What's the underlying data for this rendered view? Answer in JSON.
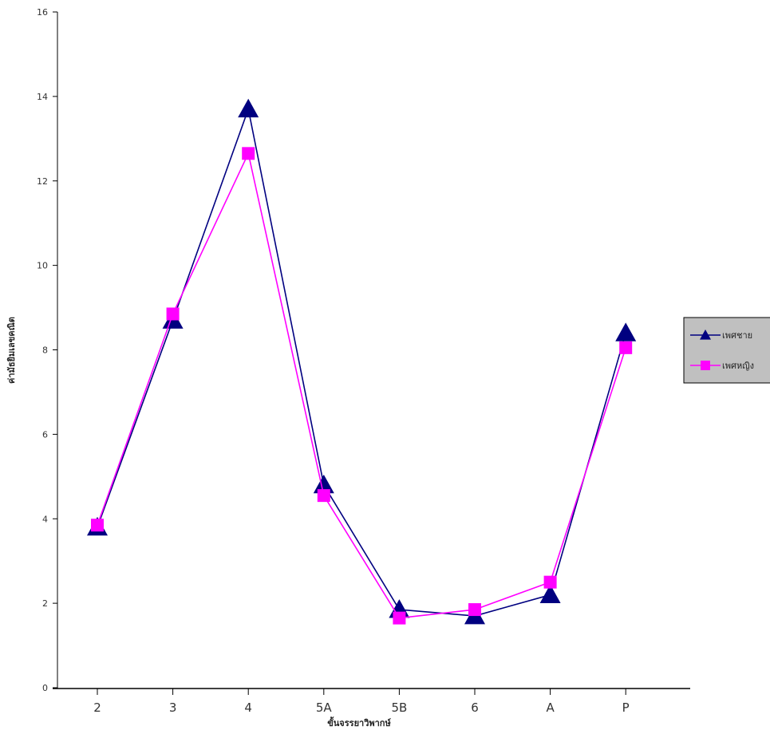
{
  "chart_data": {
    "type": "line",
    "title": "",
    "xlabel": "ขั้นจรรยาวิพากษ์",
    "ylabel": "ค่ามัธยิมเลขคณิต",
    "categories": [
      "2",
      "3",
      "4",
      "5A",
      "5B",
      "6",
      "A",
      "P"
    ],
    "ylim": [
      0,
      16
    ],
    "yticks": [
      0,
      2,
      4,
      6,
      8,
      10,
      12,
      14,
      16
    ],
    "grid": false,
    "legend_position": "right",
    "series": [
      {
        "name": "เพศชาย",
        "color": "#000080",
        "marker": "triangle",
        "values": [
          3.8,
          8.7,
          13.7,
          4.8,
          1.85,
          1.7,
          2.2,
          8.4
        ]
      },
      {
        "name": "เพศหญิง",
        "color": "#ff00ff",
        "marker": "square",
        "values": [
          3.85,
          8.85,
          12.65,
          4.55,
          1.65,
          1.85,
          2.5,
          8.05
        ]
      }
    ]
  }
}
